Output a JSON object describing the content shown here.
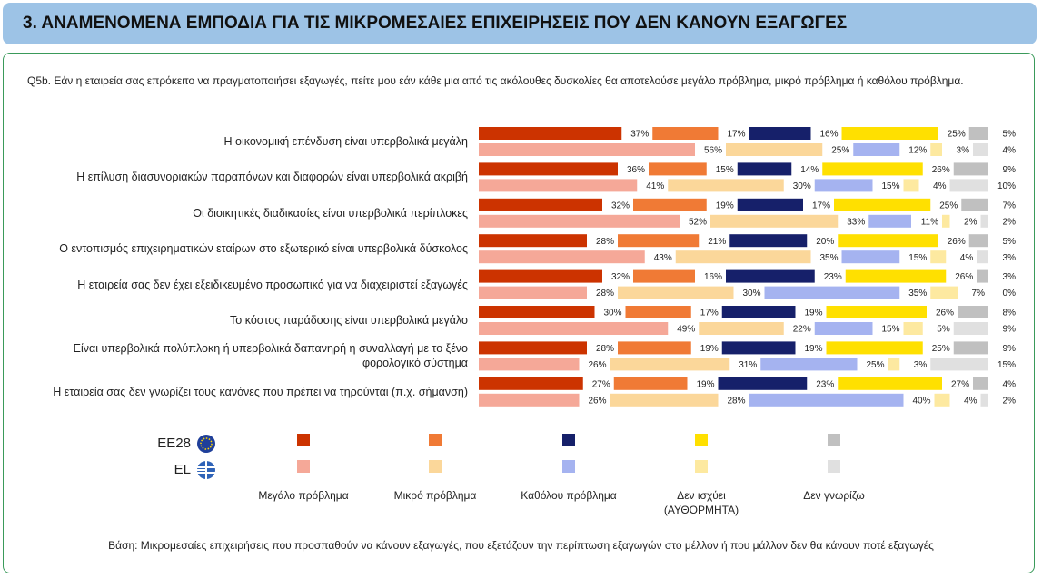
{
  "chart_data": {
    "type": "stacked-bar-horizontal",
    "title": "3. ΑΝΑΜΕΝΟΜΕΝΑ ΕΜΠΟΔΙΑ ΓΙΑ ΤΙΣ ΜΙΚΡΟΜΕΣΑΙΕΣ ΕΠΙΧΕΙΡΗΣΕΙΣ ΠΟΥ ΔΕΝ ΚΑΝΟΥΝ ΕΞΑΓΩΓΕΣ",
    "subtitle": "Q5b. Εάν η εταιρεία σας επρόκειτο να πραγματοποιήσει εξαγωγές, πείτε μου εάν κάθε μια από τις ακόλουθες δυσκολίες θα αποτελούσε μεγάλο πρόβλημα, μικρό πρόβλημα ή καθόλου πρόβλημα.",
    "note": "Βάση: Μικρομεσαίες επιχειρήσεις που προσπαθούν να κάνουν εξαγωγές, που εξετάζουν την περίπτωση εξαγωγών στο μέλλον ή που μάλλον δεν θα κάνουν ποτέ εξαγωγές",
    "categories": [
      "Η οικονομική επένδυση είναι υπερβολικά μεγάλη",
      "Η επίλυση διασυνοριακών παραπόνων και διαφορών είναι υπερβολικά ακριβή",
      "Οι διοικητικές διαδικασίες είναι υπερβολικά περίπλοκες",
      "Ο εντοπισμός επιχειρηματικών εταίρων στο εξωτερικό είναι υπερβολικά δύσκολος",
      "Η εταιρεία σας δεν έχει εξειδικευμένο προσωπικό για να διαχειριστεί εξαγωγές",
      "Το κόστος παράδοσης είναι υπερβολικά μεγάλο",
      "Είναι υπερβολικά πολύπλοκη ή υπερβολικά δαπανηρή η συναλλαγή με το ξένο φορολογικό σύστημα",
      "Η εταιρεία σας δεν γνωρίζει τους κανόνες που πρέπει να τηρούνται (π.χ. σήμανση)"
    ],
    "legend": [
      "Μεγάλο πρόβλημα",
      "Μικρό πρόβλημα",
      "Καθόλου πρόβλημα",
      "Δεν ισχύει (ΑΥΘΟΡΜΗΤΑ)",
      "Δεν γνωρίζω"
    ],
    "groups": [
      {
        "name": "EE28",
        "series": [
          {
            "color": "#cc3300",
            "values": [
              37,
              36,
              32,
              28,
              32,
              30,
              28,
              27
            ],
            "value_labels": [
              "37%",
              "36%",
              "32%",
              "28%",
              "32%",
              "30%",
              "28%",
              "27%"
            ]
          },
          {
            "color": "#f07a35",
            "values": [
              17,
              15,
              19,
              21,
              16,
              17,
              19,
              19
            ],
            "value_labels": [
              "17%",
              "15%",
              "19%",
              "21%",
              "16%",
              "17%",
              "19%",
              "19%"
            ]
          },
          {
            "color": "#16206a",
            "values": [
              16,
              14,
              17,
              20,
              23,
              19,
              19,
              23
            ],
            "value_labels": [
              "16%",
              "14%",
              "17%",
              "20%",
              "23%",
              "19%",
              "19%",
              "23%"
            ]
          },
          {
            "color": "#ffe000",
            "values": [
              25,
              26,
              25,
              26,
              26,
              26,
              25,
              27
            ],
            "value_labels": [
              "25%",
              "26%",
              "25%",
              "26%",
              "26%",
              "26%",
              "25%",
              "27%"
            ]
          },
          {
            "color": "#c0c0c0",
            "values": [
              5,
              9,
              7,
              5,
              3,
              8,
              9,
              4
            ],
            "value_labels": [
              "5%",
              "9%",
              "7%",
              "5%",
              "3%",
              "8%",
              "9%",
              "4%"
            ]
          }
        ]
      },
      {
        "name": "EL",
        "series": [
          {
            "color": "#f5a898",
            "values": [
              56,
              41,
              52,
              43,
              28,
              49,
              26,
              26
            ],
            "value_labels": [
              "56%",
              "41%",
              "52%",
              "43%",
              "28%",
              "49%",
              "26%",
              "26%"
            ]
          },
          {
            "color": "#fbd79a",
            "values": [
              25,
              30,
              33,
              35,
              30,
              22,
              31,
              28
            ],
            "value_labels": [
              "25%",
              "30%",
              "33%",
              "35%",
              "30%",
              "22%",
              "31%",
              "28%"
            ]
          },
          {
            "color": "#a5b3f0",
            "values": [
              12,
              15,
              11,
              15,
              35,
              15,
              25,
              40
            ],
            "value_labels": [
              "12%",
              "15%",
              "11%",
              "15%",
              "35%",
              "15%",
              "25%",
              "40%"
            ]
          },
          {
            "color": "#fde9a0",
            "values": [
              3,
              4,
              2,
              4,
              7,
              5,
              3,
              4
            ],
            "value_labels": [
              "3%",
              "4%",
              "2%",
              "4%",
              "7%",
              "5%",
              "3%",
              "4%"
            ]
          },
          {
            "color": "#e0e0e0",
            "values": [
              4,
              10,
              2,
              3,
              0,
              9,
              15,
              2
            ],
            "value_labels": [
              "4%",
              "10%",
              "2%",
              "3%",
              "0%",
              "9%",
              "15%",
              "2%"
            ]
          }
        ]
      }
    ]
  }
}
